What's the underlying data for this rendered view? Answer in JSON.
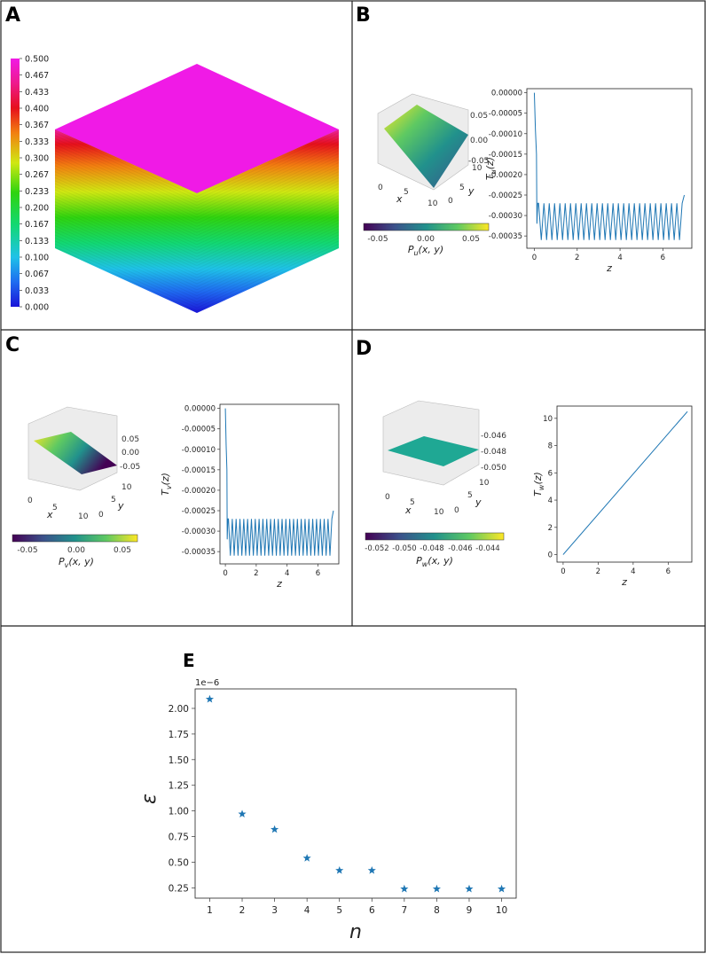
{
  "panels": {
    "a": {
      "letter": "A",
      "colorbar_ticks": [
        "0.500",
        "0.467",
        "0.433",
        "0.400",
        "0.367",
        "0.333",
        "0.300",
        "0.267",
        "0.233",
        "0.200",
        "0.167",
        "0.133",
        "0.100",
        "0.067",
        "0.033",
        "0.000"
      ]
    },
    "b": {
      "letter": "B"
    },
    "c": {
      "letter": "C"
    },
    "d": {
      "letter": "D"
    },
    "e": {
      "letter": "E"
    }
  },
  "surfaces": {
    "u": {
      "z_ticks": [
        "0.05",
        "0.00",
        "-0.05"
      ],
      "x_ticks": [
        "0",
        "5",
        "10"
      ],
      "y_ticks": [
        "0",
        "5",
        "10"
      ],
      "x_label": "x",
      "y_label": "y",
      "cbar_ticks": [
        "-0.05",
        "0.00",
        "0.05"
      ],
      "cbar_label": "P",
      "cbar_sub": "u",
      "cbar_args": "(x, y)"
    },
    "v": {
      "z_ticks": [
        "0.05",
        "0.00",
        "-0.05"
      ],
      "x_ticks": [
        "0",
        "5",
        "10"
      ],
      "y_ticks": [
        "0",
        "5",
        "10"
      ],
      "x_label": "x",
      "y_label": "y",
      "cbar_ticks": [
        "-0.05",
        "0.00",
        "0.05"
      ],
      "cbar_label": "P",
      "cbar_sub": "v",
      "cbar_args": "(x, y)"
    },
    "w": {
      "z_ticks": [
        "-0.046",
        "-0.048",
        "-0.050"
      ],
      "x_ticks": [
        "0",
        "5",
        "10"
      ],
      "y_ticks": [
        "0",
        "5",
        "10"
      ],
      "x_label": "x",
      "y_label": "y",
      "cbar_ticks": [
        "-0.052",
        "-0.050",
        "-0.048",
        "-0.046",
        "-0.044"
      ],
      "cbar_label": "P",
      "cbar_sub": "w",
      "cbar_args": "(x, y)"
    }
  },
  "colors": {
    "series": "#1f77b4",
    "tick": "#333333"
  },
  "chart_data": [
    {
      "id": "Tu",
      "type": "line",
      "ylabel_main": "T",
      "ylabel_sub": "u",
      "ylabel_args": "(z)",
      "xlabel": "z",
      "xlim": [
        -0.35,
        7.35
      ],
      "ylim": [
        -0.00038,
        1e-05
      ],
      "xticks": [
        0,
        2,
        4,
        6
      ],
      "yticks": [
        0.0,
        -5e-05,
        -0.0001,
        -0.00015,
        -0.0002,
        -0.00025,
        -0.0003,
        -0.00035
      ],
      "ytick_labels": [
        "0.00000",
        "-0.00005",
        "-0.00010",
        "-0.00015",
        "-0.00020",
        "-0.00025",
        "-0.00030",
        "-0.00035"
      ],
      "xtick_labels": [
        "0",
        "2",
        "4",
        "6"
      ],
      "description": "spike from 0 at z=0, then oscillation between about -0.00027 and -0.00036 up to z=7",
      "curve": {
        "start": 0.0,
        "hi": -0.00027,
        "lo": -0.00036,
        "cycles": 27,
        "end": -0.00025
      }
    },
    {
      "id": "Tv",
      "type": "line",
      "ylabel_main": "T",
      "ylabel_sub": "v",
      "ylabel_args": "(z)",
      "xlabel": "z",
      "xlim": [
        -0.35,
        7.35
      ],
      "ylim": [
        -0.00038,
        1e-05
      ],
      "xticks": [
        0,
        2,
        4,
        6
      ],
      "yticks": [
        0.0,
        -5e-05,
        -0.0001,
        -0.00015,
        -0.0002,
        -0.00025,
        -0.0003,
        -0.00035
      ],
      "ytick_labels": [
        "0.00000",
        "-0.00005",
        "-0.00010",
        "-0.00015",
        "-0.00020",
        "-0.00025",
        "-0.00030",
        "-0.00035"
      ],
      "xtick_labels": [
        "0",
        "2",
        "4",
        "6"
      ],
      "curve": {
        "start": 0.0,
        "hi": -0.00027,
        "lo": -0.00036,
        "cycles": 27,
        "end": -0.00025
      }
    },
    {
      "id": "Tw",
      "type": "line",
      "ylabel_main": "T",
      "ylabel_sub": "w",
      "ylabel_args": "(z)",
      "xlabel": "z",
      "xlim": [
        -0.35,
        7.35
      ],
      "ylim": [
        -0.55,
        10.9
      ],
      "xticks": [
        0,
        2,
        4,
        6
      ],
      "yticks": [
        0,
        2,
        4,
        6,
        8,
        10
      ],
      "xtick_labels": [
        "0",
        "2",
        "4",
        "6"
      ],
      "ytick_labels": [
        "0",
        "2",
        "4",
        "6",
        "8",
        "10"
      ],
      "x": [
        0,
        7.1
      ],
      "y": [
        0,
        10.5
      ]
    },
    {
      "id": "E",
      "type": "scatter",
      "title": "",
      "xlabel": "n",
      "ylabel": "ε",
      "offset_label": "1e−6",
      "x": [
        1,
        2,
        3,
        4,
        5,
        6,
        7,
        8,
        9,
        10
      ],
      "y": [
        2.09,
        0.97,
        0.82,
        0.54,
        0.42,
        0.42,
        0.24,
        0.24,
        0.24,
        0.24
      ],
      "xlim": [
        0.55,
        10.45
      ],
      "ylim": [
        0.15,
        2.19
      ],
      "xticks": [
        1,
        2,
        3,
        4,
        5,
        6,
        7,
        8,
        9,
        10
      ],
      "xtick_labels": [
        "1",
        "2",
        "3",
        "4",
        "5",
        "6",
        "7",
        "8",
        "9",
        "10"
      ],
      "yticks": [
        0.25,
        0.5,
        0.75,
        1.0,
        1.25,
        1.5,
        1.75,
        2.0
      ],
      "ytick_labels": [
        "0.25",
        "0.50",
        "0.75",
        "1.00",
        "1.25",
        "1.50",
        "1.75",
        "2.00"
      ],
      "marker": "star"
    }
  ]
}
